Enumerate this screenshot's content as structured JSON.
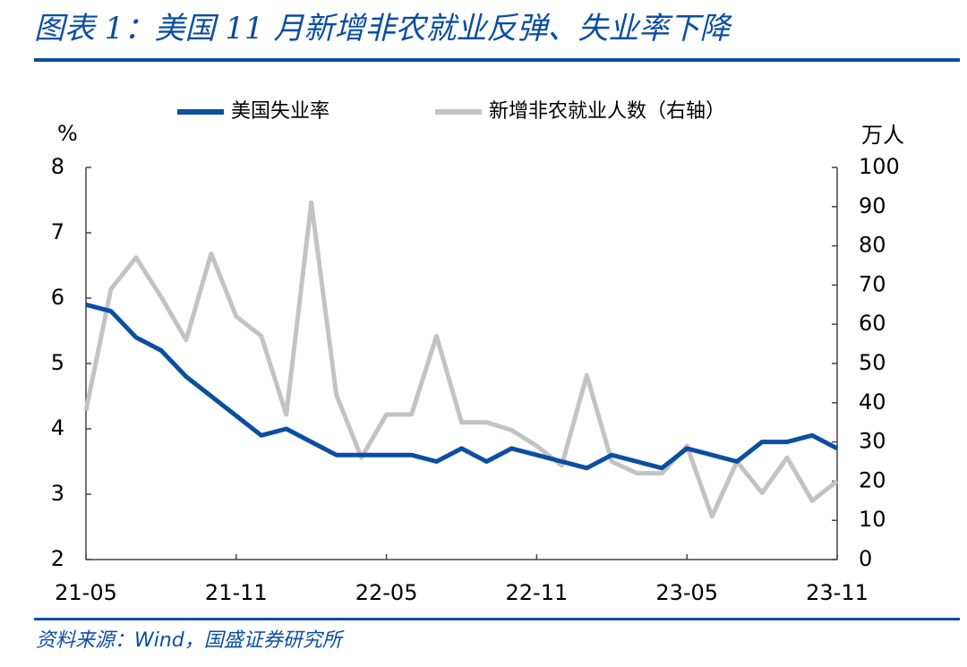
{
  "chart_data": {
    "type": "line",
    "title": "图表 1：美国 11 月新增非农就业反弹、失业率下降",
    "source": "资料来源：Wind，国盛证券研究所",
    "y_unit": "%",
    "y2_unit": "万人",
    "categories": [
      "21-05",
      null,
      null,
      null,
      null,
      null,
      "21-11",
      null,
      null,
      null,
      null,
      null,
      "22-05",
      null,
      null,
      null,
      null,
      null,
      "22-11",
      null,
      null,
      null,
      null,
      null,
      "23-05",
      null,
      null,
      null,
      null,
      null,
      "23-11"
    ],
    "series": [
      {
        "name": "美国失业率",
        "color": "#0b4ea2",
        "values": [
          5.9,
          5.8,
          5.4,
          5.2,
          4.8,
          4.5,
          4.2,
          3.9,
          4.0,
          3.8,
          3.6,
          3.6,
          3.6,
          3.6,
          3.5,
          3.7,
          3.5,
          3.7,
          3.6,
          3.5,
          3.4,
          3.6,
          3.5,
          3.4,
          3.7,
          3.6,
          3.5,
          3.8,
          3.8,
          3.9,
          3.7
        ]
      },
      {
        "name": "新增非农就业人数（右轴）",
        "color": "#c3c3c3",
        "axis": "y2",
        "values": [
          38,
          69,
          77,
          67,
          56,
          78,
          62,
          57,
          37,
          91,
          42,
          26,
          37,
          37,
          57,
          35,
          35,
          33,
          29,
          24,
          47,
          25,
          22,
          22,
          29,
          11,
          25,
          17,
          26,
          15,
          20
        ]
      }
    ],
    "ylim": [
      2,
      8
    ],
    "yticks": [
      2,
      3,
      4,
      5,
      6,
      7,
      8
    ],
    "y2lim": [
      0,
      100
    ],
    "y2ticks": [
      0,
      10,
      20,
      30,
      40,
      50,
      60,
      70,
      80,
      90,
      100
    ]
  }
}
